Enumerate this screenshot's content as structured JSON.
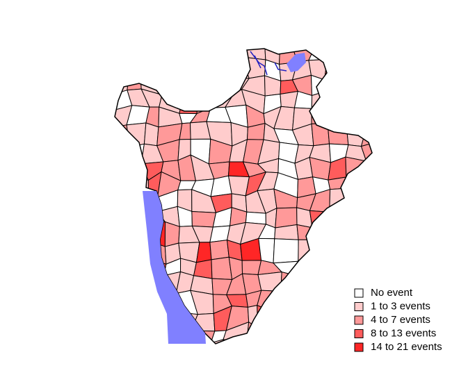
{
  "legend": {
    "items": [
      {
        "label": "No event",
        "color": "#ffffff"
      },
      {
        "label": "1 to 3 events",
        "color": "#ffcccc"
      },
      {
        "label": "4 to 7 events",
        "color": "#ff9999"
      },
      {
        "label": "8 to 13 events",
        "color": "#ff5c5c"
      },
      {
        "label": "14 to 21 events",
        "color": "#ff2626"
      }
    ]
  }
}
